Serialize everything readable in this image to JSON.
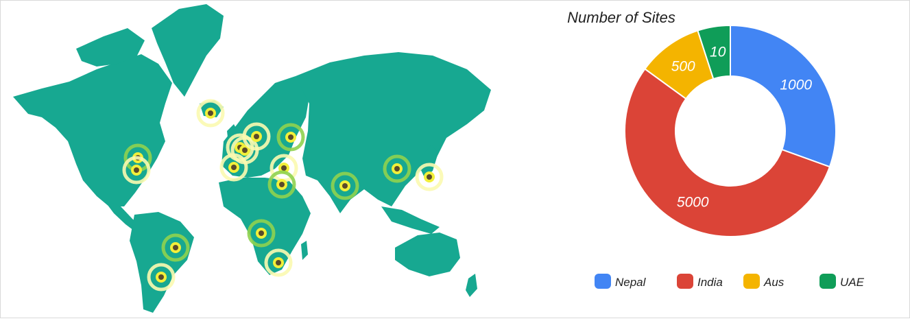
{
  "chart_data": {
    "type": "donut",
    "title": "Number of Sites",
    "categories": [
      "Nepal",
      "India",
      "Aus",
      "UAE"
    ],
    "values": [
      1000,
      5000,
      500,
      10
    ],
    "slice_labels": [
      "1000",
      "5000",
      "500",
      "10"
    ],
    "colors": [
      "#4285f4",
      "#db4437",
      "#f4b400",
      "#0f9d58"
    ],
    "legend_position": "bottom"
  },
  "map": {
    "land_color": "#17a891",
    "marker_core": "#5a4a2a",
    "marker_ring_yellow": "#f2ef3a",
    "marker_ring_green": "#8fd14f",
    "marker_halo": "#fbf9b0"
  }
}
